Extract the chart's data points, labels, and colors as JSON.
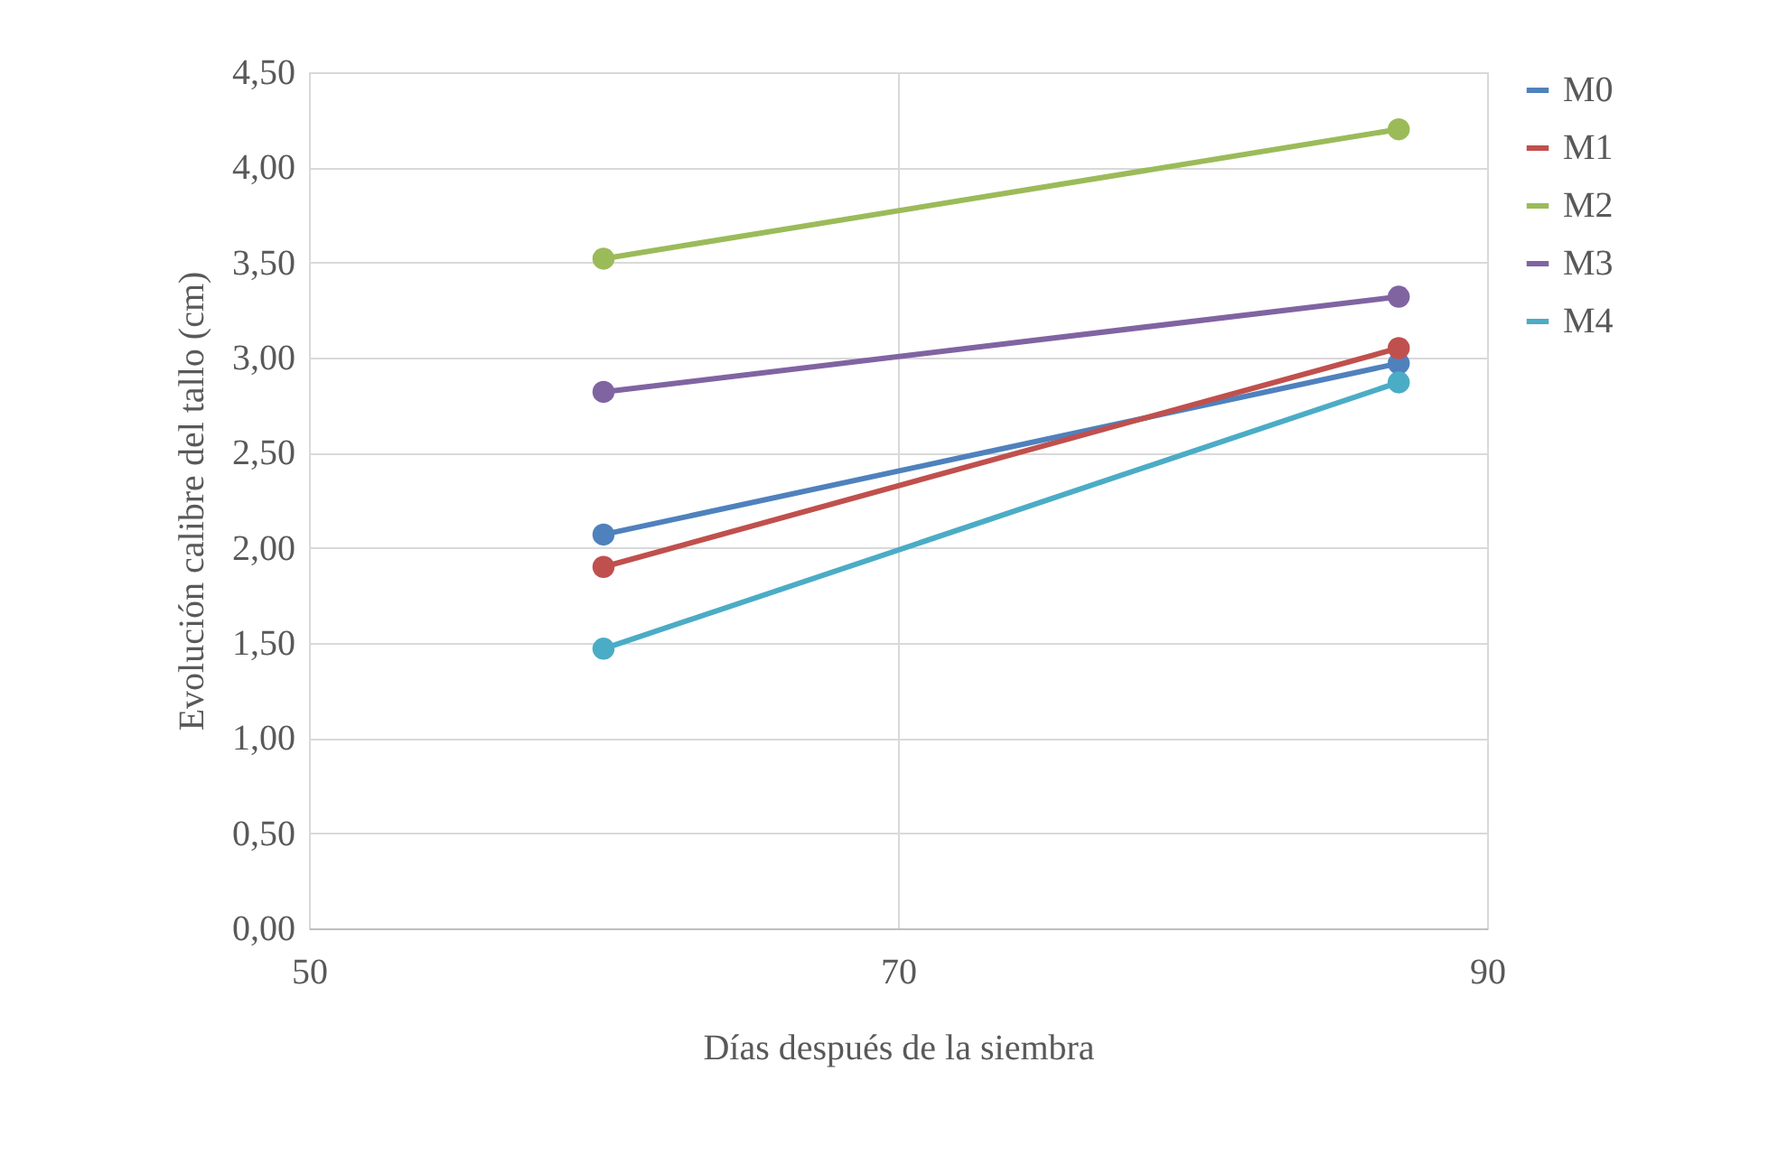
{
  "chart_data": {
    "type": "line",
    "xlabel": "Días después de la siembra",
    "ylabel": "Evolución calibre del tallo (cm)",
    "x": [
      60,
      87
    ],
    "series": [
      {
        "name": "M0",
        "color": "#4f81bd",
        "values": [
          2.07,
          2.97
        ]
      },
      {
        "name": "M1",
        "color": "#c0504d",
        "values": [
          1.9,
          3.05
        ]
      },
      {
        "name": "M2",
        "color": "#9bbb59",
        "values": [
          3.52,
          4.2
        ]
      },
      {
        "name": "M3",
        "color": "#8064a2",
        "values": [
          2.82,
          3.32
        ]
      },
      {
        "name": "M4",
        "color": "#4bacc6",
        "values": [
          1.47,
          2.87
        ]
      }
    ],
    "xlim": [
      50,
      90
    ],
    "xticks": [
      50,
      70,
      90
    ],
    "ylim": [
      0,
      4.5
    ],
    "yticks": [
      {
        "value": 0,
        "label": "0,00"
      },
      {
        "value": 0.5,
        "label": "0,50"
      },
      {
        "value": 1,
        "label": "1,00"
      },
      {
        "value": 1.5,
        "label": "1,50"
      },
      {
        "value": 2,
        "label": "2,00"
      },
      {
        "value": 2.5,
        "label": "2,50"
      },
      {
        "value": 3,
        "label": "3,00"
      },
      {
        "value": 3.5,
        "label": "3,50"
      },
      {
        "value": 4,
        "label": "4,00"
      },
      {
        "value": 4.5,
        "label": "4,50"
      }
    ],
    "grid": true,
    "legend": "right",
    "marker": "circle",
    "line_style": "solid"
  }
}
